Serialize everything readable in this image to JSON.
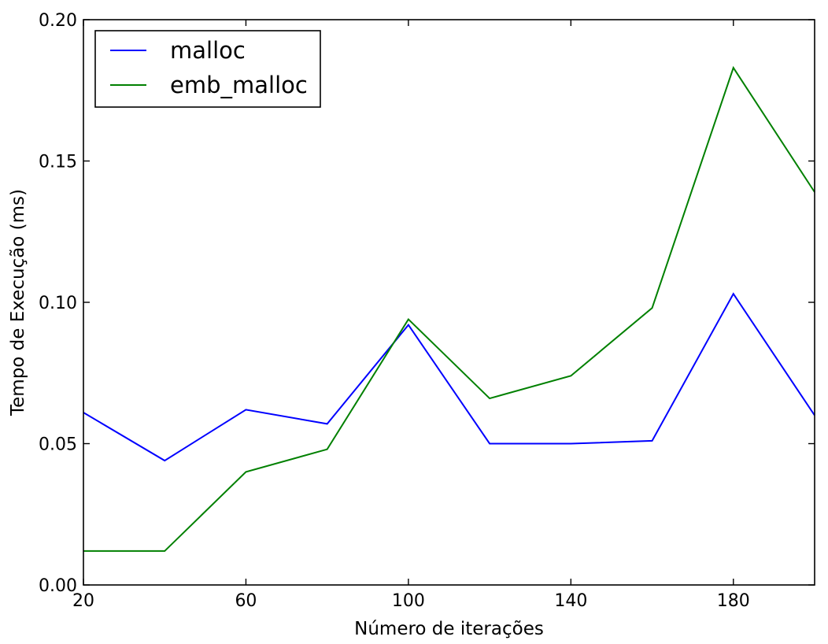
{
  "chart_data": {
    "type": "line",
    "title": "",
    "xlabel": "Número de iterações",
    "ylabel": "Tempo de Execução (ms)",
    "xlim": [
      20,
      200
    ],
    "ylim": [
      0.0,
      0.2
    ],
    "x": [
      20,
      40,
      60,
      80,
      100,
      120,
      140,
      160,
      180,
      200
    ],
    "xticks": [
      20,
      60,
      100,
      140,
      180
    ],
    "xtick_labels": [
      "20",
      "60",
      "100",
      "140",
      "180"
    ],
    "yticks": [
      0.0,
      0.05,
      0.1,
      0.15,
      0.2
    ],
    "ytick_labels": [
      "0.00",
      "0.05",
      "0.10",
      "0.15",
      "0.20"
    ],
    "grid": false,
    "legend_position": "top-left",
    "series": [
      {
        "name": "malloc",
        "color": "#0000ff",
        "values": [
          0.061,
          0.044,
          0.062,
          0.057,
          0.092,
          0.05,
          0.05,
          0.051,
          0.103,
          0.06
        ]
      },
      {
        "name": "emb_malloc",
        "color": "#008000",
        "values": [
          0.012,
          0.012,
          0.04,
          0.048,
          0.094,
          0.066,
          0.074,
          0.098,
          0.183,
          0.139
        ]
      }
    ]
  }
}
